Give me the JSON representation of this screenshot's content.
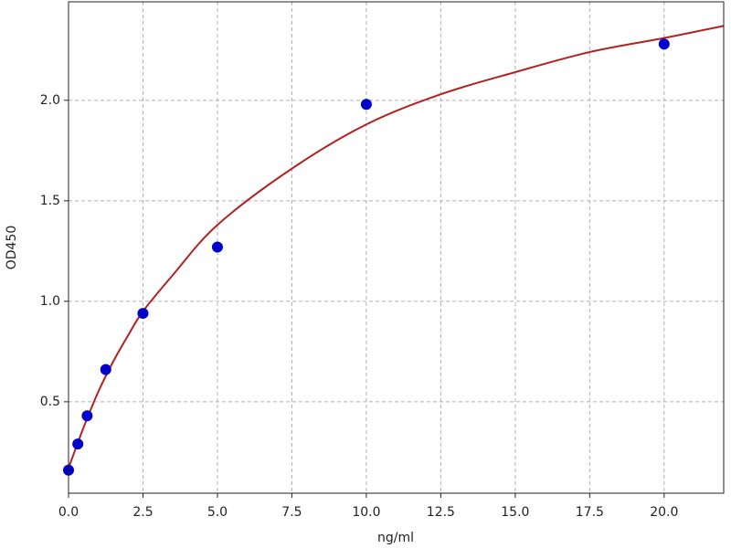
{
  "chart_data": {
    "type": "scatter",
    "x_label": "ng/ml",
    "y_label": "OD450",
    "x": [
      0,
      0.3125,
      0.625,
      1.25,
      2.5,
      5,
      10,
      20
    ],
    "series": [
      {
        "color": "#0000cc",
        "values": [
          0.16,
          0.29,
          0.43,
          0.66,
          0.94,
          1.27,
          1.98,
          2.28
        ]
      }
    ],
    "curve": {
      "color": "#b22222",
      "x": [
        0,
        0.5,
        1,
        1.5,
        2,
        2.5,
        3.5,
        5,
        7.5,
        10,
        12.5,
        15,
        17.5,
        20,
        22
      ],
      "values": [
        0.17,
        0.37,
        0.55,
        0.7,
        0.83,
        0.95,
        1.13,
        1.38,
        1.66,
        1.88,
        2.03,
        2.14,
        2.24,
        2.31,
        2.37
      ]
    },
    "xlim": [
      0,
      22
    ],
    "ylim": [
      0.045,
      2.49
    ],
    "xticks": [
      {
        "value": 0,
        "label": "0.0"
      },
      2.5,
      {
        "value": 5,
        "label": "5.0"
      },
      7.5,
      {
        "value": 10,
        "label": "10.0"
      },
      12.5,
      {
        "value": 15,
        "label": "15.0"
      },
      17.5,
      {
        "value": 20,
        "label": "20.0"
      }
    ],
    "yticks": [
      0.5,
      {
        "value": 1,
        "label": "1.0"
      },
      1.5,
      {
        "value": 2,
        "label": "2.0"
      }
    ],
    "grid": true
  }
}
